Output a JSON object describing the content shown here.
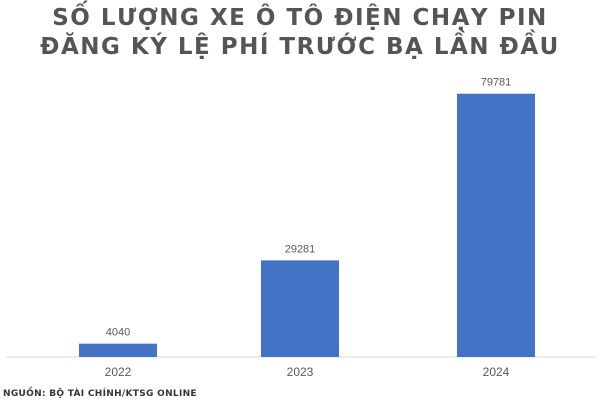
{
  "chart_data": {
    "type": "bar",
    "title_lines": [
      "SỐ LƯỢNG XE Ô TÔ ĐIỆN CHẠY PIN",
      "ĐĂNG KÝ LỆ PHÍ TRƯỚC BẠ LẦN ĐẦU"
    ],
    "categories": [
      "2022",
      "2023",
      "2024"
    ],
    "values": [
      4040,
      29281,
      79781
    ],
    "data_labels": [
      "4040",
      "29281",
      "79781"
    ],
    "ylim": [
      0,
      90000
    ],
    "bar_color": "#4472C4",
    "grid": false,
    "legend": false
  },
  "source": "NGUỒN: BỘ TÀI CHÍNH/KTSG ONLINE"
}
